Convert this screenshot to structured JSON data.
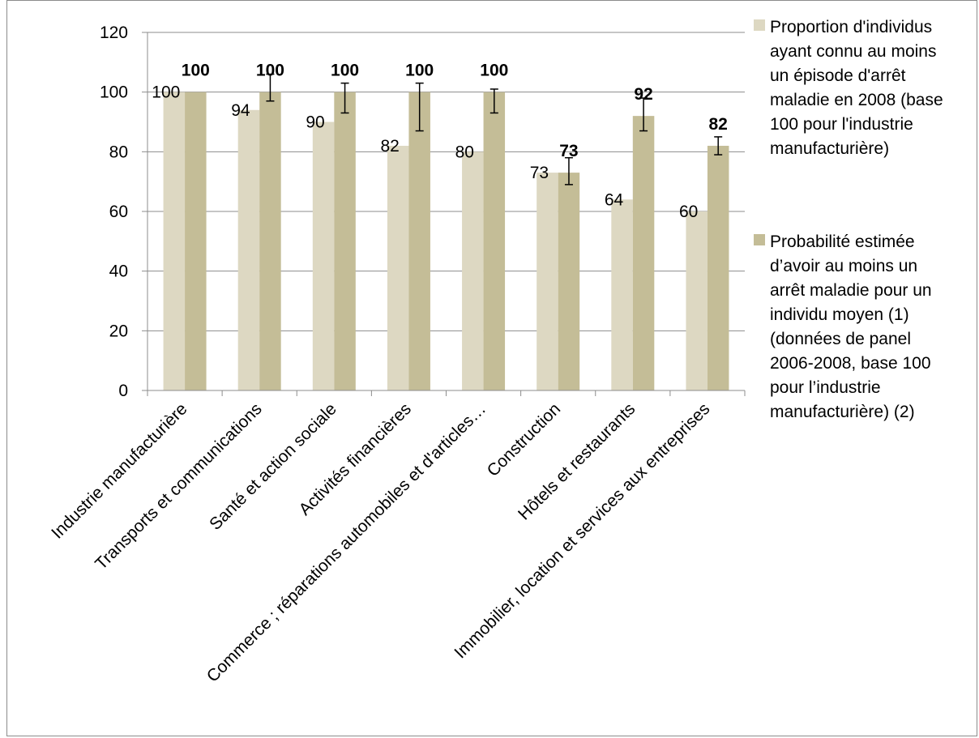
{
  "chart_data": {
    "type": "bar",
    "title": "",
    "xlabel": "",
    "ylabel": "",
    "ylim": [
      0,
      120
    ],
    "yticks": [
      0,
      20,
      40,
      60,
      80,
      100,
      120
    ],
    "grid": true,
    "legend_position": "right",
    "categories": [
      "Industrie manufacturière",
      "Transports et communications",
      "Santé et action sociale",
      "Activités financières",
      "Commerce ; réparations automobiles et d'articles…",
      "Construction",
      "Hôtels et restaurants",
      "Immobilier, location et services aux entreprises"
    ],
    "series": [
      {
        "name": "Proportion d'individus ayant connu au moins un épisode d'arrêt maladie en 2008 (base 100 pour l'industrie manufacturière)",
        "color": "#ddd8c2",
        "values": [
          100,
          94,
          90,
          82,
          80,
          73,
          64,
          60
        ],
        "labels": [
          "100",
          "94",
          "90",
          "82",
          "80",
          "73",
          "64",
          "60"
        ],
        "label_weight": "normal"
      },
      {
        "name": "Probabilité estimée d’avoir au moins un arrêt maladie pour un individu moyen (1) (données de panel 2006-2008, base 100 pour l’industrie manufacturière) (2)",
        "color": "#c4bd97",
        "values": [
          100,
          100,
          100,
          100,
          100,
          73,
          92,
          82
        ],
        "labels": [
          "100",
          "100",
          "100",
          "100",
          "100",
          "73",
          "92",
          "82"
        ],
        "label_weight": "bold",
        "error_bars": [
          [
            100,
            100
          ],
          [
            97,
            106
          ],
          [
            93,
            103
          ],
          [
            87,
            103
          ],
          [
            93,
            101
          ],
          [
            69,
            78
          ],
          [
            87,
            98
          ],
          [
            79,
            85
          ]
        ]
      }
    ],
    "legend_lines": [
      [
        "Proportion d'individus",
        "ayant connu au moins",
        "un épisode d'arrêt",
        "maladie en 2008 (base",
        "100 pour l'industrie",
        "manufacturière)"
      ],
      [
        "Probabilité estimée",
        "d’avoir au moins un",
        "arrêt maladie pour un",
        "individu moyen (1)",
        "(données de panel",
        "2006-2008, base 100",
        "pour l’industrie",
        "manufacturière) (2)"
      ]
    ]
  }
}
